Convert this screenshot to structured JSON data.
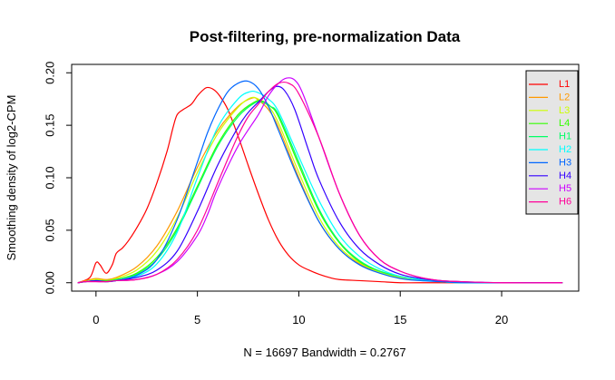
{
  "chart_data": {
    "type": "line",
    "title": "Post-filtering, pre-normalization Data",
    "xlabel": "N = 16697   Bandwidth = 0.2767",
    "ylabel": "Smoothing density of log2-CPM",
    "xlim": [
      -1.2,
      23.8
    ],
    "ylim": [
      -0.008,
      0.208
    ],
    "x_ticks": [
      0,
      5,
      10,
      15,
      20
    ],
    "x_tick_labels": [
      "0",
      "5",
      "10",
      "15",
      "20"
    ],
    "y_ticks": [
      0.0,
      0.05,
      0.1,
      0.15,
      0.2
    ],
    "y_tick_labels": [
      "0.00",
      "0.05",
      "0.10",
      "0.15",
      "0.20"
    ],
    "grid": false,
    "legend_position": "top-right",
    "series": [
      {
        "name": "L1",
        "color": "#FF0000",
        "x": [
          -0.9,
          -0.3,
          0.0,
          0.2,
          0.5,
          0.8,
          1.0,
          1.3,
          1.6,
          2.0,
          2.5,
          3.0,
          3.5,
          3.8,
          4.0,
          4.3,
          4.7,
          5.0,
          5.3,
          5.5,
          5.8,
          6.1,
          6.5,
          7.0,
          7.5,
          8.0,
          8.5,
          9.0,
          9.5,
          10.0,
          10.5,
          11.0,
          11.5,
          12.0,
          13.0,
          14.0,
          15.0,
          16.0,
          18.0,
          20.0,
          23.0
        ],
        "y": [
          0.0,
          0.005,
          0.019,
          0.017,
          0.009,
          0.017,
          0.028,
          0.033,
          0.04,
          0.052,
          0.07,
          0.095,
          0.125,
          0.148,
          0.16,
          0.165,
          0.17,
          0.178,
          0.184,
          0.186,
          0.184,
          0.178,
          0.165,
          0.14,
          0.112,
          0.085,
          0.06,
          0.04,
          0.026,
          0.017,
          0.012,
          0.008,
          0.005,
          0.003,
          0.002,
          0.001,
          0.0,
          0.0,
          0.0,
          0.0,
          0.0
        ]
      },
      {
        "name": "L2",
        "color": "#FF9900",
        "x": [
          -0.9,
          -0.5,
          0.0,
          0.5,
          1.0,
          2.0,
          3.0,
          4.0,
          5.0,
          6.0,
          7.0,
          7.7,
          8.0,
          8.5,
          9.0,
          10.0,
          11.0,
          12.0,
          13.0,
          14.0,
          15.0,
          16.0,
          17.0,
          18.0,
          20.0,
          23.0
        ],
        "y": [
          0.0,
          0.002,
          0.004,
          0.003,
          0.005,
          0.015,
          0.035,
          0.068,
          0.11,
          0.145,
          0.168,
          0.176,
          0.174,
          0.165,
          0.148,
          0.1,
          0.058,
          0.032,
          0.018,
          0.01,
          0.005,
          0.003,
          0.001,
          0.0,
          0.0,
          0.0
        ]
      },
      {
        "name": "L3",
        "color": "#CCFF00",
        "x": [
          -0.9,
          -0.5,
          0.0,
          0.5,
          1.0,
          2.0,
          3.0,
          4.0,
          5.0,
          6.0,
          7.0,
          7.6,
          8.0,
          8.5,
          9.0,
          10.0,
          11.0,
          12.0,
          13.0,
          14.0,
          15.0,
          16.0,
          17.0,
          18.0,
          20.0,
          23.0
        ],
        "y": [
          0.0,
          0.001,
          0.003,
          0.002,
          0.004,
          0.012,
          0.03,
          0.062,
          0.105,
          0.142,
          0.167,
          0.176,
          0.175,
          0.168,
          0.152,
          0.105,
          0.062,
          0.034,
          0.019,
          0.01,
          0.005,
          0.003,
          0.001,
          0.0,
          0.0,
          0.0
        ]
      },
      {
        "name": "L4",
        "color": "#33FF00",
        "x": [
          -0.9,
          -0.5,
          0.0,
          0.5,
          1.0,
          2.0,
          3.0,
          4.0,
          5.0,
          6.0,
          7.0,
          7.8,
          8.2,
          8.6,
          9.0,
          10.0,
          11.0,
          12.0,
          13.0,
          14.0,
          15.0,
          16.0,
          17.0,
          18.0,
          20.0,
          23.0
        ],
        "y": [
          0.0,
          0.001,
          0.002,
          0.002,
          0.003,
          0.009,
          0.024,
          0.052,
          0.092,
          0.132,
          0.16,
          0.172,
          0.173,
          0.168,
          0.158,
          0.112,
          0.068,
          0.038,
          0.02,
          0.011,
          0.006,
          0.003,
          0.001,
          0.0,
          0.0,
          0.0
        ]
      },
      {
        "name": "H1",
        "color": "#00FF66",
        "x": [
          -0.9,
          -0.5,
          0.0,
          0.5,
          1.0,
          2.0,
          3.0,
          4.0,
          5.0,
          6.0,
          7.0,
          7.8,
          8.2,
          8.6,
          9.0,
          10.0,
          11.0,
          12.0,
          13.0,
          14.0,
          15.0,
          16.0,
          17.0,
          18.0,
          20.0,
          23.0
        ],
        "y": [
          0.0,
          0.001,
          0.002,
          0.001,
          0.003,
          0.008,
          0.022,
          0.05,
          0.09,
          0.13,
          0.158,
          0.171,
          0.172,
          0.168,
          0.16,
          0.115,
          0.07,
          0.039,
          0.021,
          0.011,
          0.006,
          0.003,
          0.001,
          0.0,
          0.0,
          0.0
        ]
      },
      {
        "name": "H2",
        "color": "#00FFFF",
        "x": [
          -0.9,
          -0.5,
          0.0,
          0.5,
          1.0,
          2.0,
          3.0,
          4.0,
          5.0,
          6.0,
          7.0,
          7.6,
          8.0,
          8.5,
          9.0,
          10.0,
          11.0,
          12.0,
          13.0,
          14.0,
          15.0,
          16.0,
          17.0,
          18.0,
          20.0,
          23.0
        ],
        "y": [
          0.0,
          0.001,
          0.002,
          0.001,
          0.002,
          0.006,
          0.018,
          0.048,
          0.1,
          0.148,
          0.175,
          0.182,
          0.181,
          0.175,
          0.163,
          0.12,
          0.078,
          0.045,
          0.025,
          0.013,
          0.006,
          0.003,
          0.001,
          0.0,
          0.0,
          0.0
        ]
      },
      {
        "name": "H3",
        "color": "#0066FF",
        "x": [
          -0.9,
          -0.5,
          0.0,
          0.5,
          1.0,
          2.0,
          3.0,
          4.0,
          5.0,
          5.5,
          6.0,
          6.5,
          7.0,
          7.5,
          8.0,
          8.5,
          9.0,
          10.0,
          11.0,
          12.0,
          13.0,
          14.0,
          15.0,
          16.0,
          17.0,
          18.0,
          20.0,
          23.0
        ],
        "y": [
          0.0,
          0.001,
          0.002,
          0.001,
          0.002,
          0.007,
          0.022,
          0.06,
          0.115,
          0.143,
          0.165,
          0.182,
          0.19,
          0.192,
          0.185,
          0.168,
          0.145,
          0.098,
          0.058,
          0.032,
          0.017,
          0.009,
          0.004,
          0.002,
          0.001,
          0.0,
          0.0,
          0.0
        ]
      },
      {
        "name": "H4",
        "color": "#3300FF",
        "x": [
          -0.9,
          -0.5,
          0.0,
          0.5,
          1.0,
          2.0,
          3.0,
          4.0,
          5.0,
          6.0,
          7.0,
          7.5,
          8.0,
          8.5,
          8.9,
          9.3,
          9.8,
          10.5,
          11.0,
          12.0,
          13.0,
          14.0,
          15.0,
          16.0,
          17.0,
          18.0,
          20.0,
          23.0
        ],
        "y": [
          0.0,
          0.001,
          0.002,
          0.001,
          0.002,
          0.005,
          0.012,
          0.03,
          0.068,
          0.112,
          0.148,
          0.162,
          0.172,
          0.182,
          0.187,
          0.183,
          0.165,
          0.125,
          0.098,
          0.058,
          0.032,
          0.017,
          0.008,
          0.004,
          0.002,
          0.001,
          0.0,
          0.0
        ]
      },
      {
        "name": "H5",
        "color": "#CC00FF",
        "x": [
          -0.9,
          -0.5,
          0.0,
          0.5,
          1.0,
          2.0,
          3.0,
          4.0,
          5.0,
          5.5,
          6.0,
          7.0,
          8.0,
          8.5,
          9.0,
          9.4,
          9.8,
          10.2,
          11.0,
          12.0,
          13.0,
          14.0,
          15.0,
          16.0,
          17.0,
          18.0,
          20.0,
          23.0
        ],
        "y": [
          0.0,
          0.001,
          0.001,
          0.001,
          0.002,
          0.003,
          0.008,
          0.02,
          0.045,
          0.065,
          0.09,
          0.13,
          0.16,
          0.178,
          0.19,
          0.195,
          0.193,
          0.18,
          0.138,
          0.085,
          0.045,
          0.022,
          0.011,
          0.005,
          0.002,
          0.001,
          0.0,
          0.0
        ]
      },
      {
        "name": "H6",
        "color": "#FF0099",
        "x": [
          -0.9,
          -0.5,
          0.0,
          0.5,
          1.0,
          2.0,
          3.0,
          4.0,
          5.0,
          6.0,
          6.5,
          7.0,
          7.5,
          8.0,
          8.5,
          9.0,
          9.5,
          10.0,
          11.0,
          12.0,
          13.0,
          14.0,
          15.0,
          16.0,
          17.0,
          18.0,
          20.0,
          23.0
        ],
        "y": [
          0.0,
          0.001,
          0.001,
          0.001,
          0.002,
          0.003,
          0.008,
          0.022,
          0.05,
          0.095,
          0.118,
          0.14,
          0.158,
          0.17,
          0.182,
          0.19,
          0.19,
          0.18,
          0.138,
          0.085,
          0.045,
          0.022,
          0.011,
          0.005,
          0.002,
          0.001,
          0.0,
          0.0
        ]
      }
    ]
  }
}
